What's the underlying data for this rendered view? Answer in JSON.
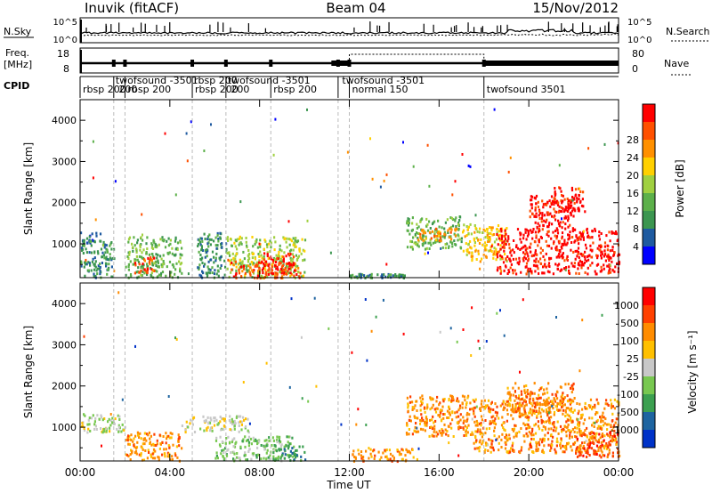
{
  "header": {
    "site": "Inuvik (fitACF)",
    "beam": "Beam 04",
    "date": "15/Nov/2012"
  },
  "chart_data": [
    {
      "type": "line",
      "panel": "N.Sky / N.Search",
      "left_label": "N.Sky",
      "right_label": "N.Search",
      "left_ticks": [
        "10^5",
        "10^0"
      ],
      "right_ticks": [
        "10^5",
        "10^0"
      ]
    },
    {
      "type": "line",
      "panel": "Freq / Nave",
      "left_label_line1": "Freq.",
      "left_label_line2": "[MHz]",
      "right_label": "Nave",
      "left_ticks": [
        "18",
        "8"
      ],
      "right_ticks": [
        "80",
        "0"
      ]
    },
    {
      "type": "table",
      "panel": "CPID",
      "label": "CPID",
      "programs": [
        {
          "name": "rbsp 200",
          "start_h": 0.0
        },
        {
          "name": "twofsound -3501",
          "start_h": 1.5
        },
        {
          "name": "rbsp 200",
          "start_h": 2.0
        },
        {
          "name": "rbsp 200",
          "start_h": 5.0
        },
        {
          "name": "twofsound -3501",
          "start_h": 6.5
        },
        {
          "name": "rbsp 200",
          "start_h": 8.5
        },
        {
          "name": "twofsound -3501",
          "start_h": 11.5
        },
        {
          "name": "normal 150",
          "start_h": 12.0
        },
        {
          "name": "twofsound 3501",
          "start_h": 18.0
        }
      ],
      "row1_labels": [
        {
          "text": "twofsound -3501",
          "h": 1.5
        },
        {
          "text": "rbsp 200",
          "h": 5.0
        },
        {
          "text": "twofsound -3501",
          "h": 6.5
        },
        {
          "text": "twofsound -3501",
          "h": 11.6
        }
      ],
      "row2_labels": [
        {
          "text": "rbsp 200",
          "h": 0.0
        },
        {
          "text": "200",
          "h": 1.6
        },
        {
          "text": "rbsp 200",
          "h": 2.0
        },
        {
          "text": "rbsp 200",
          "h": 5.0
        },
        {
          "text": "200",
          "h": 6.6
        },
        {
          "text": "rbsp 200",
          "h": 8.5
        },
        {
          "text": "normal 150",
          "h": 12.0
        },
        {
          "text": "twofsound 3501",
          "h": 18.0
        }
      ]
    },
    {
      "type": "heatmap",
      "panel": "Power",
      "ylabel": "Slant Range [km]",
      "yticks": [
        "1000",
        "2000",
        "3000",
        "4000"
      ],
      "colorbar_label": "Power [dB]",
      "colorbar_ticks": [
        "4",
        "8",
        "12",
        "16",
        "20",
        "24",
        "28"
      ],
      "colors": [
        "#0000ff",
        "#1e5aa0",
        "#3c9650",
        "#5cb04a",
        "#a0d040",
        "#ffd000",
        "#ff9000",
        "#ff5000",
        "#ff0000"
      ],
      "ylim": [
        180,
        4500
      ],
      "xlim": [
        0,
        24
      ],
      "blobs": [
        {
          "x0": 0.0,
          "x1": 1.0,
          "y0": 1050,
          "y1": 1300,
          "level": 1
        },
        {
          "x0": 0.0,
          "x1": 1.5,
          "y0": 200,
          "y1": 1100,
          "level": 2
        },
        {
          "x0": 2.0,
          "x1": 4.5,
          "y0": 200,
          "y1": 1200,
          "level": 3
        },
        {
          "x0": 2.4,
          "x1": 3.4,
          "y0": 300,
          "y1": 700,
          "level": 7
        },
        {
          "x0": 5.2,
          "x1": 6.5,
          "y0": 200,
          "y1": 1300,
          "level": 2
        },
        {
          "x0": 6.5,
          "x1": 10.0,
          "y0": 200,
          "y1": 1200,
          "level": 4
        },
        {
          "x0": 6.7,
          "x1": 9.8,
          "y0": 200,
          "y1": 600,
          "level": 7
        },
        {
          "x0": 8.0,
          "x1": 9.5,
          "y0": 300,
          "y1": 800,
          "level": 8
        },
        {
          "x0": 12.0,
          "x1": 14.5,
          "y0": 200,
          "y1": 300,
          "level": 2
        },
        {
          "x0": 14.5,
          "x1": 17.0,
          "y0": 900,
          "y1": 1700,
          "level": 3
        },
        {
          "x0": 15.0,
          "x1": 16.8,
          "y0": 1100,
          "y1": 1400,
          "level": 6
        },
        {
          "x0": 17.0,
          "x1": 19.0,
          "y0": 600,
          "y1": 1500,
          "level": 5
        },
        {
          "x0": 18.5,
          "x1": 24.0,
          "y0": 300,
          "y1": 1400,
          "level": 8
        },
        {
          "x0": 20.0,
          "x1": 22.0,
          "y0": 1400,
          "y1": 2200,
          "level": 8
        },
        {
          "x0": 21.0,
          "x1": 22.5,
          "y0": 1800,
          "y1": 2400,
          "level": 8
        }
      ]
    },
    {
      "type": "heatmap",
      "panel": "Velocity",
      "ylabel": "Slant Range [km]",
      "yticks": [
        "1000",
        "2000",
        "3000",
        "4000"
      ],
      "colorbar_label": "Velocity [m s⁻¹]",
      "colorbar_ticks": [
        "1000",
        "500",
        "100",
        "25",
        "-25",
        "-100",
        "-500",
        "-1000"
      ],
      "colors": [
        "#0032c8",
        "#1e64a0",
        "#3ca050",
        "#78c850",
        "#c8c8c8",
        "#ffc000",
        "#ff8c00",
        "#ff4000",
        "#ff0000"
      ],
      "ylim": [
        180,
        4500
      ],
      "xlim": [
        0,
        24
      ],
      "blobs": [
        {
          "x0": 0.0,
          "x1": 2.0,
          "y0": 900,
          "y1": 1350,
          "level": 4
        },
        {
          "x0": 2.0,
          "x1": 4.5,
          "y0": 200,
          "y1": 900,
          "level": 6
        },
        {
          "x0": 4.5,
          "x1": 7.5,
          "y0": 900,
          "y1": 1300,
          "level": 4
        },
        {
          "x0": 6.0,
          "x1": 9.5,
          "y0": 200,
          "y1": 800,
          "level": 3
        },
        {
          "x0": 8.5,
          "x1": 10.0,
          "y0": 200,
          "y1": 600,
          "level": 2
        },
        {
          "x0": 12.0,
          "x1": 15.0,
          "y0": 200,
          "y1": 500,
          "level": 6
        },
        {
          "x0": 14.5,
          "x1": 17.5,
          "y0": 800,
          "y1": 1800,
          "level": 6
        },
        {
          "x0": 17.5,
          "x1": 24.0,
          "y0": 400,
          "y1": 1700,
          "level": 6
        },
        {
          "x0": 19.0,
          "x1": 22.0,
          "y0": 1400,
          "y1": 2100,
          "level": 6
        },
        {
          "x0": 22.0,
          "x1": 24.0,
          "y0": 300,
          "y1": 900,
          "level": 7
        }
      ]
    }
  ],
  "time_axis": {
    "label": "Time UT",
    "ticks": [
      "00:00",
      "04:00",
      "08:00",
      "12:00",
      "16:00",
      "20:00",
      "00:00"
    ],
    "tick_hours": [
      0,
      4,
      8,
      12,
      16,
      20,
      24
    ],
    "boundary_hours": [
      1.5,
      2.0,
      5.0,
      6.5,
      8.5,
      11.5,
      12.0,
      18.0
    ],
    "normal_mode_nave_span_h": [
      12.0,
      18.0
    ]
  }
}
